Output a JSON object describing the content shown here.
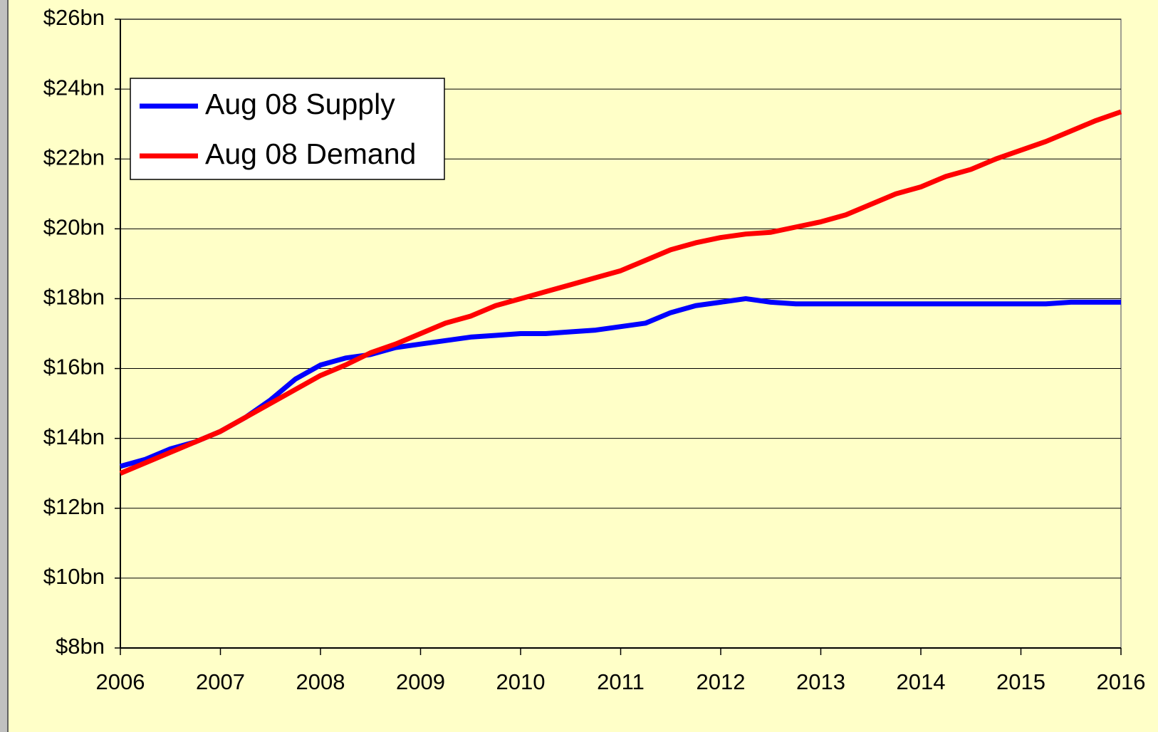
{
  "chart_data": {
    "type": "line",
    "x": [
      2006,
      2006.25,
      2006.5,
      2006.75,
      2007,
      2007.25,
      2007.5,
      2007.75,
      2008,
      2008.25,
      2008.5,
      2008.75,
      2009,
      2009.25,
      2009.5,
      2009.75,
      2010,
      2010.25,
      2010.5,
      2010.75,
      2011,
      2011.25,
      2011.5,
      2011.75,
      2012,
      2012.25,
      2012.5,
      2012.75,
      2013,
      2013.25,
      2013.5,
      2013.75,
      2014,
      2014.25,
      2014.5,
      2014.75,
      2015,
      2015.25,
      2015.5,
      2015.75,
      2016
    ],
    "series": [
      {
        "name": "Aug 08 Supply",
        "color": "#0000ff",
        "values": [
          13.2,
          13.4,
          13.7,
          13.9,
          14.2,
          14.6,
          15.1,
          15.7,
          16.1,
          16.3,
          16.4,
          16.6,
          16.7,
          16.8,
          16.9,
          16.95,
          17.0,
          17.0,
          17.05,
          17.1,
          17.2,
          17.3,
          17.6,
          17.8,
          17.9,
          18.0,
          17.9,
          17.85,
          17.85,
          17.85,
          17.85,
          17.85,
          17.85,
          17.85,
          17.85,
          17.85,
          17.85,
          17.85,
          17.9,
          17.9,
          17.9
        ]
      },
      {
        "name": "Aug 08 Demand",
        "color": "#ff0000",
        "values": [
          13.0,
          13.3,
          13.6,
          13.9,
          14.2,
          14.6,
          15.0,
          15.4,
          15.8,
          16.1,
          16.45,
          16.7,
          17.0,
          17.3,
          17.5,
          17.8,
          18.0,
          18.2,
          18.4,
          18.6,
          18.8,
          19.1,
          19.4,
          19.6,
          19.75,
          19.85,
          19.9,
          20.05,
          20.2,
          20.4,
          20.7,
          21.0,
          21.2,
          21.5,
          21.7,
          22.0,
          22.25,
          22.5,
          22.8,
          23.1,
          23.35
        ]
      }
    ],
    "xlim": [
      2006,
      2016
    ],
    "xticks": [
      2006,
      2007,
      2008,
      2009,
      2010,
      2011,
      2012,
      2013,
      2014,
      2015,
      2016
    ],
    "ylim": [
      8,
      26
    ],
    "yticks": [
      {
        "value": 8,
        "label": "$8bn"
      },
      {
        "value": 10,
        "label": "$10bn"
      },
      {
        "value": 12,
        "label": "$12bn"
      },
      {
        "value": 14,
        "label": "$14bn"
      },
      {
        "value": 16,
        "label": "$16bn"
      },
      {
        "value": 18,
        "label": "$18bn"
      },
      {
        "value": 20,
        "label": "$20bn"
      },
      {
        "value": 22,
        "label": "$22bn"
      },
      {
        "value": 24,
        "label": "$24bn"
      },
      {
        "value": 26,
        "label": "$26bn"
      }
    ],
    "grid": true,
    "legend": "upper left"
  }
}
